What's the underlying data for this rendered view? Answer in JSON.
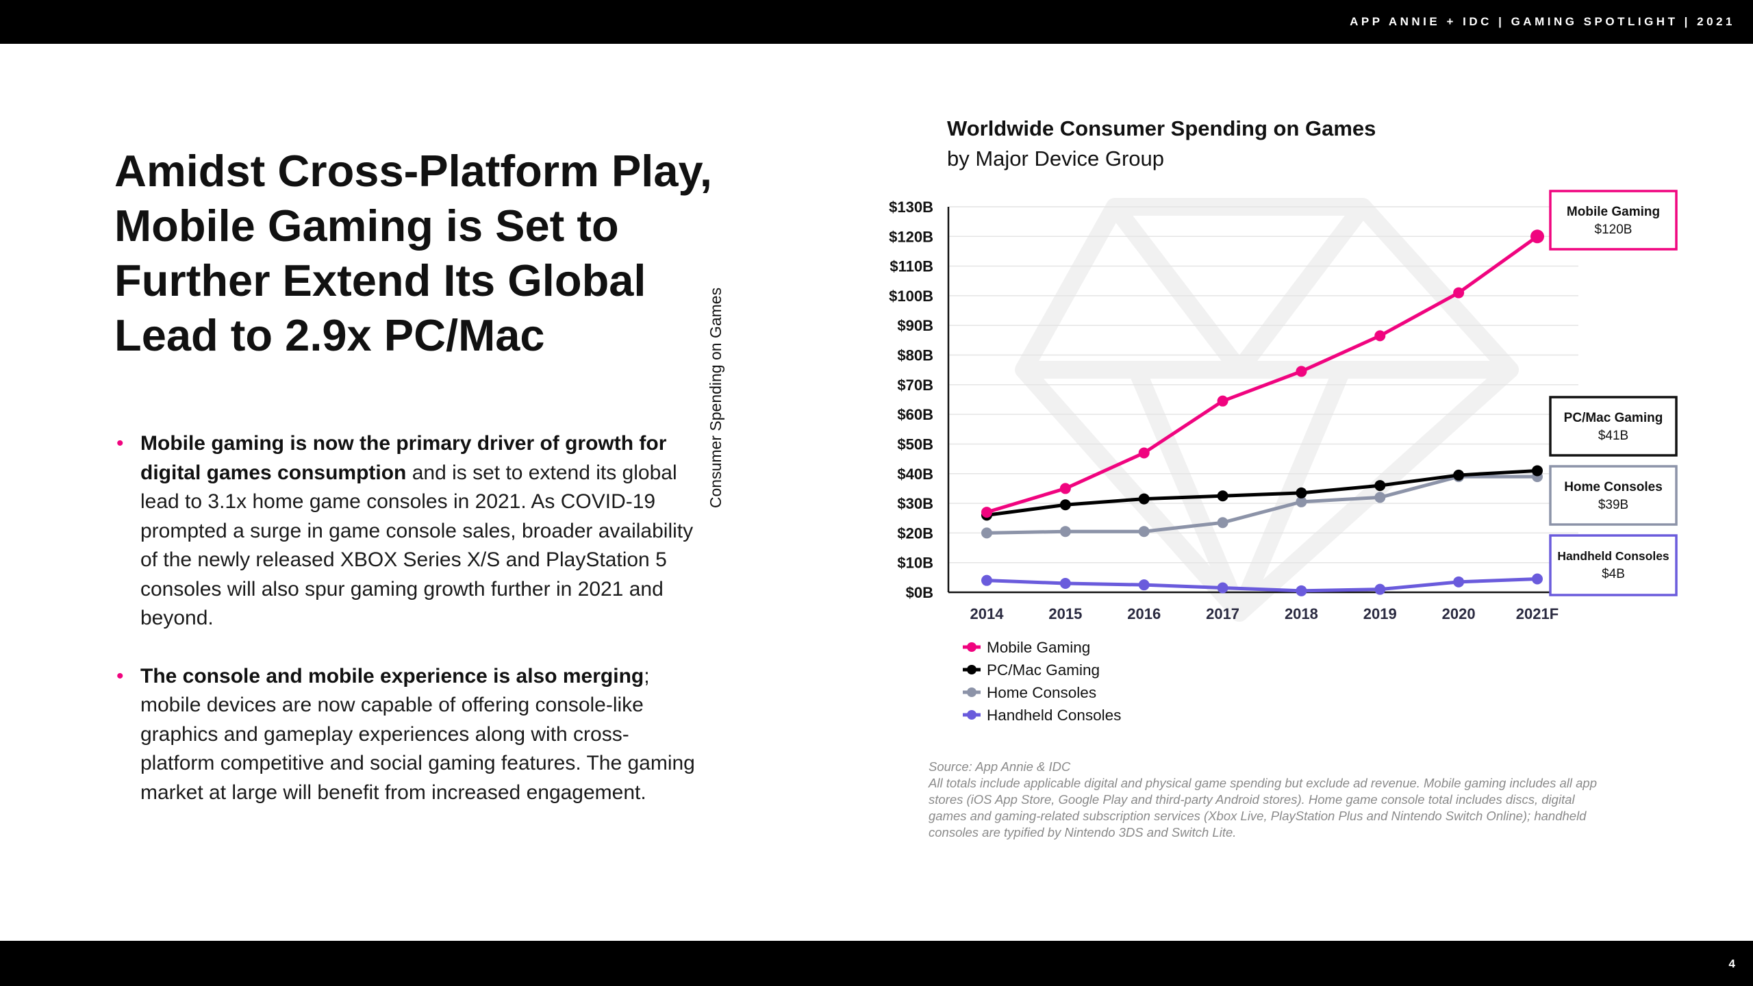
{
  "header": {
    "text": "APP ANNIE + IDC  |  GAMING SPOTLIGHT  | 2021"
  },
  "footer": {
    "page_number": "4"
  },
  "headline": "Amidst Cross-Platform Play, Mobile Gaming is Set to Further Extend Its Global Lead to 2.9x PC/Mac",
  "bullets": [
    {
      "bold": "Mobile gaming is now the primary driver of growth for digital games consumption",
      "rest": " and is set to extend its global lead to 3.1x home game consoles in 2021. As COVID-19 prompted a surge in game console sales, broader availability of the newly released XBOX Series X/S and PlayStation 5 consoles will also spur gaming growth further in 2021 and beyond."
    },
    {
      "bold": "The console and mobile experience is also merging",
      "rest": "; mobile devices are now capable of offering console-like graphics and gameplay experiences along with cross-platform competitive and social gaming features. The gaming market at large will benefit from increased engagement."
    }
  ],
  "source": {
    "line1": "Source: App Annie & IDC",
    "line2": "All totals include applicable digital and physical game spending but exclude ad revenue. Mobile gaming includes all app stores (iOS App Store, Google Play and third-party Android stores). Home game console total includes discs, digital games and gaming-related subscription services (Xbox Live, PlayStation Plus and Nintendo Switch Online); handheld consoles are typified by Nintendo 3DS and Switch Lite."
  },
  "colors": {
    "accent": "#f0047f",
    "pc": "#000000",
    "home": "#8c93a8",
    "handheld": "#6a5bdc"
  },
  "chart_data": {
    "type": "line",
    "title": "Worldwide Consumer Spending on Games",
    "subtitle": "by Major Device Group",
    "xlabel": "",
    "ylabel": "Consumer Spending on Games",
    "categories": [
      "2014",
      "2015",
      "2016",
      "2017",
      "2018",
      "2019",
      "2020",
      "2021F"
    ],
    "y_ticks": [
      "$0B",
      "$10B",
      "$20B",
      "$30B",
      "$40B",
      "$50B",
      "$60B",
      "$70B",
      "$80B",
      "$90B",
      "$100B",
      "$110B",
      "$120B",
      "$130B"
    ],
    "ylim": [
      0,
      130
    ],
    "grid": true,
    "legend_position": "bottom-left",
    "series": [
      {
        "name": "Mobile Gaming",
        "color": "#f0047f",
        "values": [
          27,
          35,
          47,
          64.5,
          74.5,
          86.5,
          101,
          120
        ],
        "label_title": "Mobile Gaming",
        "label_value": "$120B"
      },
      {
        "name": "PC/Mac Gaming",
        "color": "#000000",
        "values": [
          26,
          29.5,
          31.5,
          32.5,
          33.5,
          36,
          39.5,
          41
        ],
        "label_title": "PC/Mac Gaming",
        "label_value": "$41B"
      },
      {
        "name": "Home Consoles",
        "color": "#8c93a8",
        "values": [
          20,
          20.5,
          20.5,
          23.5,
          30.5,
          32,
          39,
          39
        ],
        "label_title": "Home Consoles",
        "label_value": "$39B"
      },
      {
        "name": "Handheld Consoles",
        "color": "#6a5bdc",
        "values": [
          4,
          3,
          2.5,
          1.5,
          0.5,
          1,
          3.5,
          4.5
        ],
        "label_title": "Handheld Consoles",
        "label_value": "$4B"
      }
    ]
  }
}
